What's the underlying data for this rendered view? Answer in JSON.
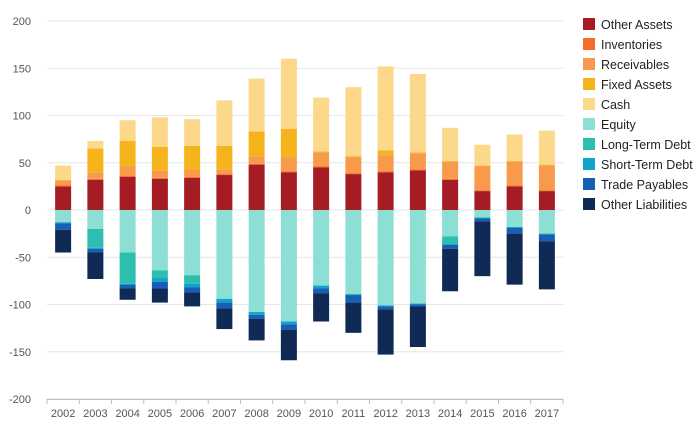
{
  "chart_data": {
    "type": "bar",
    "stacked": true,
    "title": "",
    "xlabel": "",
    "ylabel": "",
    "ylim": [
      -200,
      200
    ],
    "yticks": [
      -200,
      -150,
      -100,
      -50,
      0,
      50,
      100,
      150,
      200
    ],
    "grid": true,
    "legend_position": "right",
    "categories": [
      "2002",
      "2003",
      "2004",
      "2005",
      "2006",
      "2007",
      "2008",
      "2009",
      "2010",
      "2011",
      "2012",
      "2013",
      "2014",
      "2015",
      "2016",
      "2017"
    ],
    "series": [
      {
        "name": "Other Assets",
        "color": "#a51c24",
        "values": [
          25,
          32,
          35,
          33,
          34,
          37,
          48,
          40,
          45,
          38,
          40,
          42,
          32,
          20,
          25,
          20
        ]
      },
      {
        "name": "Inventories",
        "color": "#f46b2d",
        "values": [
          1,
          1,
          1,
          1,
          1,
          1,
          1,
          1,
          1,
          1,
          1,
          1,
          1,
          1,
          1,
          1
        ]
      },
      {
        "name": "Receivables",
        "color": "#f89a4c",
        "values": [
          5,
          7,
          10,
          8,
          8,
          5,
          8,
          15,
          15,
          17,
          17,
          17,
          18,
          25,
          25,
          26
        ]
      },
      {
        "name": "Fixed Assets",
        "color": "#f6b41c",
        "values": [
          1,
          25,
          27,
          25,
          25,
          25,
          26,
          30,
          1,
          1,
          5,
          1,
          1,
          1,
          1,
          1
        ]
      },
      {
        "name": "Cash",
        "color": "#fbd88a",
        "values": [
          15,
          8,
          22,
          31,
          28,
          48,
          56,
          74,
          57,
          73,
          89,
          83,
          35,
          22,
          28,
          36
        ]
      },
      {
        "name": "Equity",
        "color": "#8ddfd3",
        "values": [
          -13,
          -20,
          -45,
          -64,
          -69,
          -94,
          -108,
          -118,
          -80,
          -89,
          -101,
          -99,
          -28,
          -8,
          -18,
          -25
        ]
      },
      {
        "name": "Long-Term Debt",
        "color": "#2cbfb0",
        "values": [
          0,
          -20,
          -33,
          -8,
          -9,
          0,
          0,
          0,
          0,
          0,
          0,
          0,
          -8,
          0,
          0,
          0
        ]
      },
      {
        "name": "Short-Term Debt",
        "color": "#12a3cc",
        "values": [
          -1,
          -1,
          -1,
          -4,
          -4,
          -4,
          -3,
          -3,
          -3,
          -1,
          -1,
          -1,
          -1,
          -1,
          -1,
          -1
        ]
      },
      {
        "name": "Trade Payables",
        "color": "#175fb3",
        "values": [
          -7,
          -4,
          -4,
          -7,
          -5,
          -6,
          -4,
          -6,
          -5,
          -8,
          -3,
          -2,
          -4,
          -3,
          -6,
          -7
        ]
      },
      {
        "name": "Other Liabilities",
        "color": "#0e2a55",
        "values": [
          -24,
          -28,
          -12,
          -15,
          -15,
          -22,
          -23,
          -32,
          -30,
          -32,
          -48,
          -43,
          -45,
          -58,
          -54,
          -51
        ]
      }
    ]
  }
}
